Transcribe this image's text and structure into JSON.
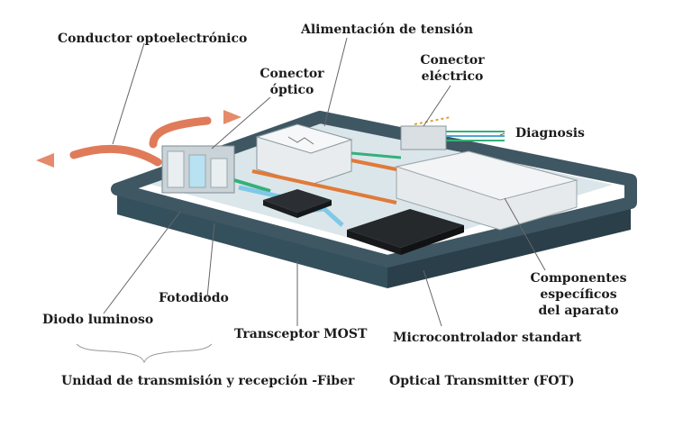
{
  "labels": {
    "conductor": "Conductor optoelectrónico",
    "alimentacion": "Alimentación de tensión",
    "conector_optico_1": "Conector",
    "conector_optico_2": "óptico",
    "conector_electrico_1": "Conector",
    "conector_electrico_2": "eléctrico",
    "diagnosis": "Diagnosis",
    "componentes_1": "Componentes",
    "componentes_2": "específicos",
    "componentes_3": "del aparato",
    "fotodiodo": "Fotodiodo",
    "diodo": "Diodo luminoso",
    "transceptor": "Transceptor MOST",
    "microcontrolador": "Microcontrolador standart",
    "unidad": "Unidad de transmisión y recepción -Fiber",
    "fot": "Optical Transmitter (FOT)"
  },
  "colors": {
    "housing": "#3f5763",
    "housing_dark": "#2a3c45",
    "floor": "#dfe8ec",
    "pipe": "#e07b5a",
    "cable_green": "#35b07a",
    "cable_orange": "#e07a3a",
    "light_blue": "#7fc8e8"
  }
}
